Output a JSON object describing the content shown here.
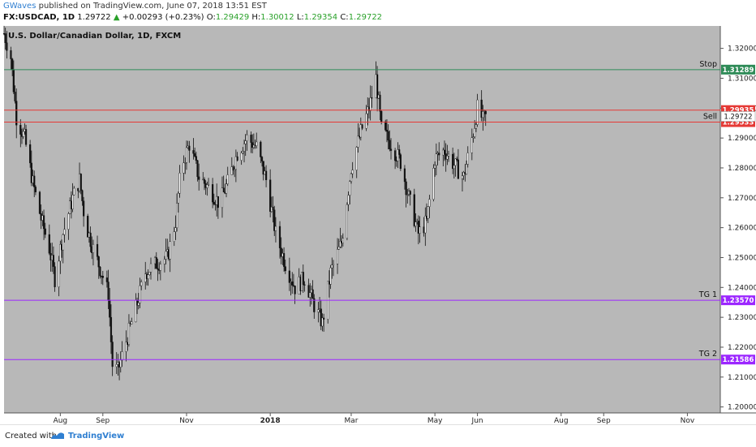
{
  "header": {
    "author": "GWaves",
    "published": "published on TradingView.com, June 07, 2018 13:51 EST",
    "symbol": "FX:USDCAD, 1D",
    "last": "1.29722",
    "change": "+0.00293 (+0.23%)",
    "o_label": "O:",
    "o": "1.29429",
    "h_label": "H:",
    "h": "1.30012",
    "l_label": "L:",
    "l": "1.29354",
    "c_label": "C:",
    "c": "1.29722"
  },
  "footer": {
    "created": "Created with",
    "brand": "TradingView"
  },
  "chart_data": {
    "type": "candlestick",
    "title": "U.S. Dollar/Canadian Dollar, 1D, FXCM",
    "y_range": [
      1.198,
      1.3275
    ],
    "x_range": [
      "2017-06-21",
      "2018-11-25"
    ],
    "y_ticks": [
      "1.32000",
      "1.31000",
      "1.30000",
      "1.29000",
      "1.28000",
      "1.27000",
      "1.26000",
      "1.25000",
      "1.24000",
      "1.23000",
      "1.22000",
      "1.21000",
      "1.20000"
    ],
    "x_ticks": [
      {
        "label": "Aug",
        "date": "2017-08-01"
      },
      {
        "label": "Sep",
        "date": "2017-09-01"
      },
      {
        "label": "Nov",
        "date": "2017-11-01"
      },
      {
        "label": "2018",
        "date": "2018-01-01"
      },
      {
        "label": "Mar",
        "date": "2018-03-01"
      },
      {
        "label": "May",
        "date": "2018-05-01"
      },
      {
        "label": "Jun",
        "date": "2018-06-01"
      },
      {
        "label": "Aug",
        "date": "2018-08-01"
      },
      {
        "label": "Sep",
        "date": "2018-09-01"
      },
      {
        "label": "Nov",
        "date": "2018-11-01"
      }
    ],
    "levels": [
      {
        "name": "Stop",
        "value": 1.31289,
        "label": "1.31289",
        "color": "#2e8b57"
      },
      {
        "name": "",
        "value": 1.29935,
        "label": "1.29935",
        "color": "#e53935"
      },
      {
        "name": "Sell",
        "value": 1.29533,
        "label": "1.29533",
        "color": "#e53935"
      },
      {
        "name": "TG 1",
        "value": 1.2357,
        "label": "1.23570",
        "color": "#9c27ff"
      },
      {
        "name": "TG 2",
        "value": 1.21586,
        "label": "1.21586",
        "color": "#9c27ff"
      }
    ],
    "current_price": {
      "value": 1.29722,
      "label": "1.29722"
    },
    "price_path": [
      [
        "2017-06-21",
        1.325
      ],
      [
        "2017-06-26",
        1.317
      ],
      [
        "2017-06-30",
        1.297
      ],
      [
        "2017-07-06",
        1.29
      ],
      [
        "2017-07-12",
        1.275
      ],
      [
        "2017-07-18",
        1.263
      ],
      [
        "2017-07-24",
        1.253
      ],
      [
        "2017-07-28",
        1.243
      ],
      [
        "2017-08-03",
        1.258
      ],
      [
        "2017-08-10",
        1.27
      ],
      [
        "2017-08-15",
        1.276
      ],
      [
        "2017-08-19",
        1.262
      ],
      [
        "2017-08-25",
        1.253
      ],
      [
        "2017-08-31",
        1.245
      ],
      [
        "2017-09-05",
        1.238
      ],
      [
        "2017-09-08",
        1.214
      ],
      [
        "2017-09-12",
        1.212
      ],
      [
        "2017-09-18",
        1.222
      ],
      [
        "2017-09-25",
        1.233
      ],
      [
        "2017-10-02",
        1.245
      ],
      [
        "2017-10-10",
        1.248
      ],
      [
        "2017-10-18",
        1.25
      ],
      [
        "2017-10-24",
        1.262
      ],
      [
        "2017-10-28",
        1.28
      ],
      [
        "2017-11-03",
        1.288
      ],
      [
        "2017-11-10",
        1.277
      ],
      [
        "2017-11-18",
        1.273
      ],
      [
        "2017-11-25",
        1.268
      ],
      [
        "2017-12-01",
        1.275
      ],
      [
        "2017-12-08",
        1.285
      ],
      [
        "2017-12-15",
        1.29
      ],
      [
        "2017-12-22",
        1.287
      ],
      [
        "2017-12-29",
        1.276
      ],
      [
        "2018-01-05",
        1.258
      ],
      [
        "2018-01-12",
        1.248
      ],
      [
        "2018-01-19",
        1.24
      ],
      [
        "2018-01-26",
        1.243
      ],
      [
        "2018-02-02",
        1.234
      ],
      [
        "2018-02-08",
        1.228
      ],
      [
        "2018-02-14",
        1.245
      ],
      [
        "2018-02-22",
        1.255
      ],
      [
        "2018-03-01",
        1.28
      ],
      [
        "2018-03-08",
        1.292
      ],
      [
        "2018-03-14",
        1.3
      ],
      [
        "2018-03-19",
        1.31
      ],
      [
        "2018-03-23",
        1.293
      ],
      [
        "2018-03-30",
        1.288
      ],
      [
        "2018-04-06",
        1.282
      ],
      [
        "2018-04-12",
        1.27
      ],
      [
        "2018-04-19",
        1.258
      ],
      [
        "2018-04-25",
        1.262
      ],
      [
        "2018-05-01",
        1.283
      ],
      [
        "2018-05-08",
        1.286
      ],
      [
        "2018-05-15",
        1.281
      ],
      [
        "2018-05-22",
        1.277
      ],
      [
        "2018-05-29",
        1.292
      ],
      [
        "2018-06-01",
        1.3
      ],
      [
        "2018-06-05",
        1.296
      ],
      [
        "2018-06-07",
        1.297
      ]
    ]
  }
}
